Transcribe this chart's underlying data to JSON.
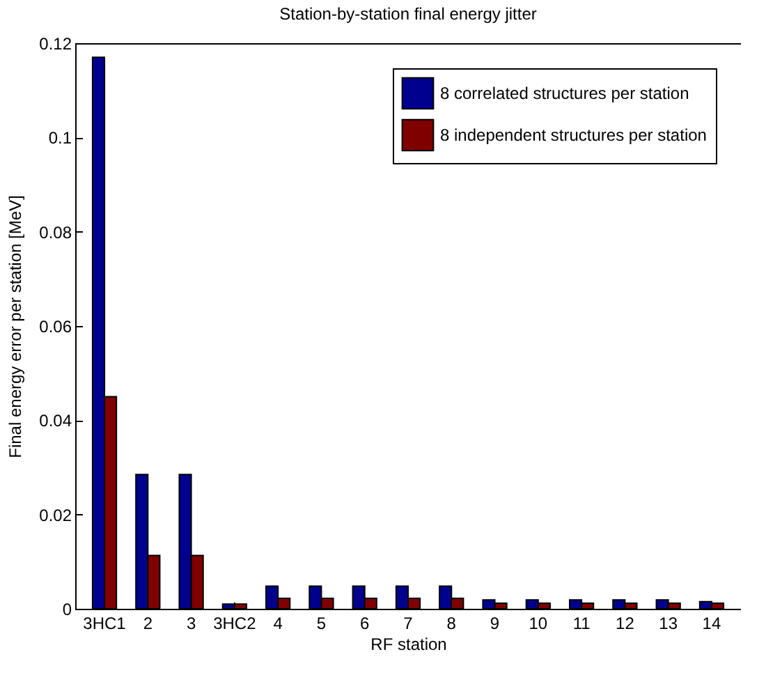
{
  "chart_data": {
    "type": "bar",
    "title": "Station-by-station final energy jitter",
    "xlabel": "RF station",
    "ylabel": "Final energy error per station [MeV]",
    "categories": [
      "3HC1",
      "2",
      "3",
      "3HC2",
      "4",
      "5",
      "6",
      "7",
      "8",
      "9",
      "10",
      "11",
      "12",
      "13",
      "14"
    ],
    "series": [
      {
        "name": "8 correlated structures per station",
        "color": "#00008f",
        "values": [
          0.117,
          0.0285,
          0.0285,
          0.001,
          0.0048,
          0.0048,
          0.0048,
          0.0048,
          0.0048,
          0.0019,
          0.0019,
          0.0019,
          0.0019,
          0.0019,
          0.0015
        ]
      },
      {
        "name": "8 independent structures per station",
        "color": "#800000",
        "values": [
          0.045,
          0.0113,
          0.0113,
          0.001,
          0.0022,
          0.0022,
          0.0022,
          0.0022,
          0.0022,
          0.0012,
          0.0012,
          0.0012,
          0.0012,
          0.0012,
          0.0012
        ]
      }
    ],
    "ylim": [
      0,
      0.12
    ],
    "yticks": [
      0,
      0.02,
      0.04,
      0.06,
      0.08,
      0.1,
      0.12
    ],
    "grid": false,
    "legend": "top right"
  }
}
